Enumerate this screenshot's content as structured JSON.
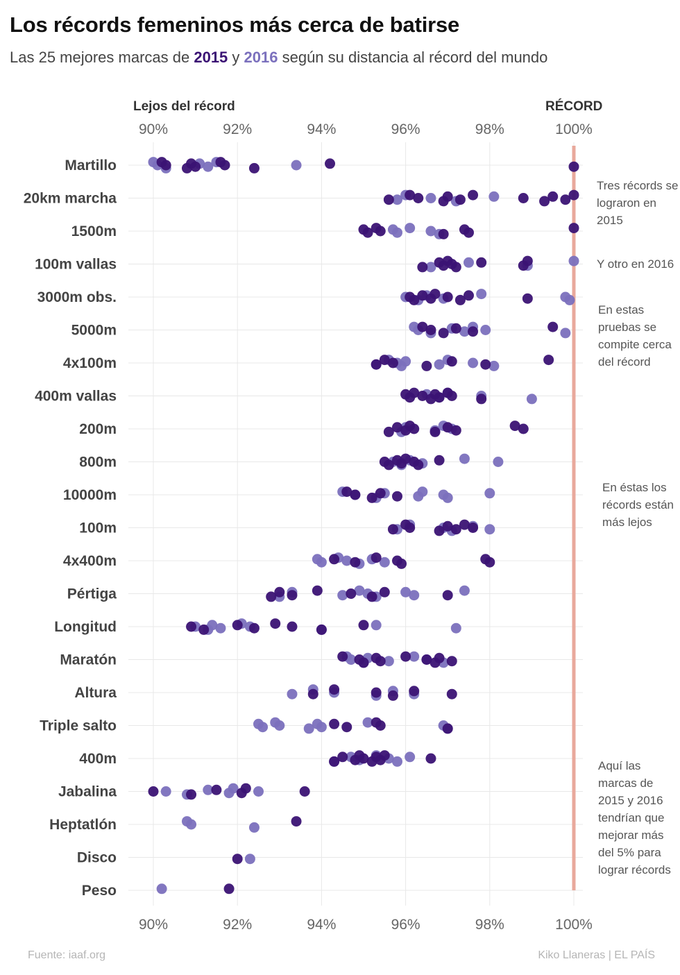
{
  "header": {
    "title": "Los récords femeninos más cerca de batirse",
    "subtitle_pre": "Las 25 mejores marcas de ",
    "subtitle_y1": "2015",
    "subtitle_mid": " y ",
    "subtitle_y2": "2016",
    "subtitle_post": " según su distancia al récord del mundo"
  },
  "axis_headers": {
    "left": "Lejos del récord",
    "right": "RÉCORD"
  },
  "notes": [
    "Tres récords se lograron en 2015",
    "Y otro en 2016",
    "En estas pruebas se compite cerca del récord",
    "En éstas los récords están más lejos",
    "Aquí las marcas de 2015 y 2016 tendrían que mejorar más del 5% para lograr récords"
  ],
  "footer": {
    "source": "Fuente: iaaf.org",
    "credit": "Kiko Llaneras  |  EL PAÍS"
  },
  "colors": {
    "y2015": "#3b1374",
    "y2016": "#7b70bd",
    "record_line": "#e9a99c",
    "grid": "#e8e8e8"
  },
  "chart_data": {
    "type": "scatter",
    "xlim": [
      90,
      100
    ],
    "x_ticks": [
      90,
      92,
      94,
      96,
      98,
      100
    ],
    "x_tick_labels": [
      "90%",
      "92%",
      "94%",
      "96%",
      "98%",
      "100%"
    ],
    "record_value": 100,
    "categories": [
      "Martillo",
      "20km marcha",
      "1500m",
      "100m vallas",
      "3000m obs.",
      "5000m",
      "4x100m",
      "400m vallas",
      "200m",
      "800m",
      "10000m",
      "100m",
      "4x400m",
      "Pértiga",
      "Longitud",
      "Maratón",
      "Altura",
      "Triple salto",
      "400m",
      "Jabalina",
      "Heptatlón",
      "Disco",
      "Peso"
    ],
    "series": [
      {
        "name": "2015",
        "points": [
          [
            "Martillo",
            [
              90.2,
              90.3,
              90.8,
              90.9,
              91.0,
              91.6,
              91.7,
              92.4,
              94.2,
              100
            ]
          ],
          [
            "20km marcha",
            [
              95.6,
              96.1,
              96.3,
              96.9,
              97.0,
              97.3,
              97.6,
              98.8,
              99.3,
              99.5,
              99.8,
              100
            ]
          ],
          [
            "1500m",
            [
              95.0,
              95.1,
              95.3,
              95.4,
              96.9,
              97.4,
              97.5,
              100
            ]
          ],
          [
            "100m vallas",
            [
              96.4,
              96.8,
              96.9,
              97.0,
              97.1,
              97.2,
              97.8,
              98.8,
              98.9
            ]
          ],
          [
            "3000m obs.",
            [
              96.1,
              96.2,
              96.4,
              96.6,
              96.7,
              97.0,
              97.3,
              97.5,
              98.9
            ]
          ],
          [
            "5000m",
            [
              96.4,
              96.6,
              96.9,
              97.2,
              97.6,
              99.5
            ]
          ],
          [
            "4x100m",
            [
              95.3,
              95.5,
              95.7,
              96.5,
              97.1,
              97.9,
              99.4
            ]
          ],
          [
            "400m vallas",
            [
              96.0,
              96.1,
              96.2,
              96.4,
              96.6,
              96.7,
              96.8,
              97.0,
              97.1,
              97.8
            ]
          ],
          [
            "200m",
            [
              95.6,
              95.8,
              96.0,
              96.1,
              96.2,
              96.7,
              97.0,
              97.2,
              98.6,
              98.8
            ]
          ],
          [
            "800m",
            [
              95.5,
              95.6,
              95.8,
              95.9,
              96.0,
              96.2,
              96.3,
              96.8
            ]
          ],
          [
            "10000m",
            [
              94.6,
              94.8,
              95.2,
              95.4,
              95.8
            ]
          ],
          [
            "100m",
            [
              95.7,
              96.0,
              96.1,
              96.8,
              97.0,
              97.2,
              97.4,
              97.6
            ]
          ],
          [
            "4x400m",
            [
              94.3,
              94.8,
              95.3,
              95.8,
              95.9,
              97.9,
              98.0
            ]
          ],
          [
            "Pértiga",
            [
              92.8,
              93.0,
              93.3,
              93.9,
              94.7,
              95.2,
              95.5,
              97.0
            ]
          ],
          [
            "Longitud",
            [
              90.9,
              91.2,
              92.0,
              92.4,
              92.9,
              93.3,
              94.0,
              95.0
            ]
          ],
          [
            "Maratón",
            [
              94.5,
              94.9,
              95.0,
              95.3,
              95.4,
              96.0,
              96.5,
              96.7,
              96.8,
              97.1
            ]
          ],
          [
            "Altura",
            [
              93.8,
              94.3,
              95.3,
              95.7,
              96.2,
              97.1
            ]
          ],
          [
            "Triple salto",
            [
              94.3,
              94.6,
              95.3,
              95.4,
              97.0
            ]
          ],
          [
            "400m",
            [
              94.3,
              94.5,
              94.8,
              94.9,
              95.0,
              95.2,
              95.3,
              95.4,
              95.5,
              96.6
            ]
          ],
          [
            "Jabalina",
            [
              90.0,
              90.9,
              91.5,
              92.1,
              92.2,
              93.6
            ]
          ],
          [
            "Heptatlón",
            [
              93.4
            ]
          ],
          [
            "Disco",
            [
              92.0
            ]
          ],
          [
            "Peso",
            [
              91.8
            ]
          ]
        ]
      },
      {
        "name": "2016",
        "points": [
          [
            "Martillo",
            [
              90.0,
              90.1,
              90.3,
              91.1,
              91.3,
              91.5,
              93.4
            ]
          ],
          [
            "20km marcha",
            [
              95.8,
              96.0,
              96.6,
              97.2,
              98.1
            ]
          ],
          [
            "1500m",
            [
              95.7,
              95.8,
              96.1,
              96.6,
              96.8
            ]
          ],
          [
            "100m vallas",
            [
              96.6,
              97.5,
              98.9,
              100
            ]
          ],
          [
            "3000m obs.",
            [
              96.0,
              96.3,
              96.5,
              96.9,
              97.8,
              99.8,
              99.9
            ]
          ],
          [
            "5000m",
            [
              96.2,
              96.3,
              96.6,
              97.1,
              97.4,
              97.6,
              97.9,
              99.8
            ]
          ],
          [
            "4x100m",
            [
              95.3,
              95.6,
              95.8,
              95.9,
              96.0,
              96.8,
              97.0,
              97.6,
              98.1
            ]
          ],
          [
            "400m vallas",
            [
              96.5,
              96.8,
              97.0,
              97.8,
              99.0
            ]
          ],
          [
            "200m",
            [
              95.9,
              96.0,
              96.7,
              96.9,
              97.1
            ]
          ],
          [
            "800m",
            [
              95.7,
              95.9,
              96.1,
              96.4,
              97.4,
              98.2
            ]
          ],
          [
            "10000m",
            [
              94.5,
              94.8,
              95.3,
              95.5,
              96.3,
              96.4,
              96.9,
              97.0,
              98.0
            ]
          ],
          [
            "100m",
            [
              95.8,
              96.1,
              96.9,
              97.1,
              97.6,
              98.0
            ]
          ],
          [
            "4x400m",
            [
              93.9,
              94.0,
              94.4,
              94.6,
              94.9,
              95.2,
              95.5
            ]
          ],
          [
            "Pértiga",
            [
              93.0,
              93.3,
              94.5,
              94.9,
              95.1,
              95.3,
              96.0,
              96.2,
              97.4
            ]
          ],
          [
            "Longitud",
            [
              91.0,
              91.3,
              91.4,
              91.6,
              92.1,
              92.3,
              94.0,
              95.3,
              97.2
            ]
          ],
          [
            "Maratón",
            [
              94.6,
              94.7,
              95.0,
              95.1,
              95.6,
              96.2,
              96.5,
              96.9
            ]
          ],
          [
            "Altura",
            [
              93.3,
              93.8,
              94.3,
              95.3,
              95.7,
              96.2
            ]
          ],
          [
            "Triple salto",
            [
              92.5,
              92.6,
              92.9,
              93.0,
              93.7,
              93.9,
              94.0,
              95.1,
              96.9,
              97.0
            ]
          ],
          [
            "400m",
            [
              94.3,
              94.7,
              94.9,
              95.3,
              95.6,
              95.8,
              96.1
            ]
          ],
          [
            "Jabalina",
            [
              90.3,
              90.8,
              91.3,
              91.8,
              91.9,
              92.5
            ]
          ],
          [
            "Heptatlón",
            [
              90.8,
              90.9,
              92.4
            ]
          ],
          [
            "Disco",
            [
              92.3
            ]
          ],
          [
            "Peso",
            [
              90.2
            ]
          ]
        ]
      }
    ]
  }
}
